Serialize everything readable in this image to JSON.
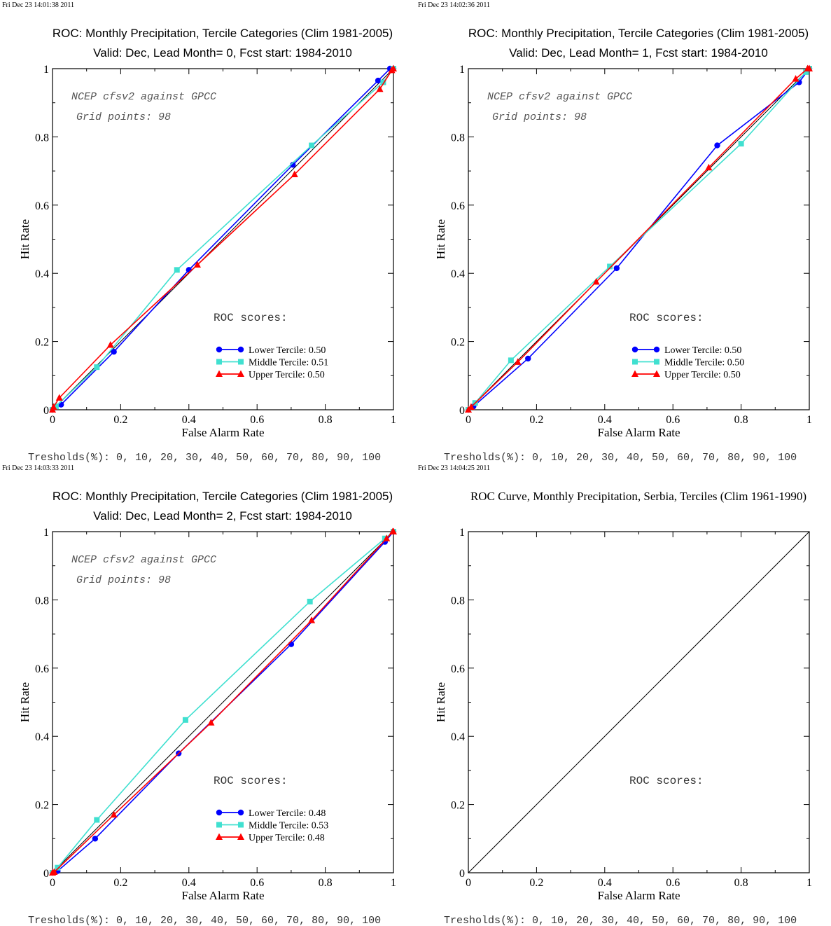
{
  "chart_data": [
    {
      "type": "line",
      "timestamp": "Fri Dec 23 14:01:38 2011",
      "title": "ROC: Monthly Precipitation, Tercile Categories (Clim 1981-2005)",
      "subtitle": "Valid: Dec, Lead Month= 0, Fcst start: 1984-2010",
      "xlabel": "False Alarm Rate",
      "ylabel": "Hit Rate",
      "xlim": [
        0,
        1
      ],
      "ylim": [
        0,
        1
      ],
      "xticks": [
        "0",
        "0.2",
        "0.4",
        "0.6",
        "0.8",
        "1"
      ],
      "yticks": [
        "0",
        "0.2",
        "0.4",
        "0.6",
        "0.8",
        "1"
      ],
      "annotation_1": "NCEP cfsv2 against GPCC",
      "annotation_2": "Grid points:   98",
      "scores_title": "ROC scores:",
      "legend_position": "bottom-right",
      "thresholds": "Tresholds(%): 0, 10, 20, 30, 40, 50, 60, 70, 80, 90, 100",
      "series": [
        {
          "name": "Lower Tercile: 0.50",
          "color": "#0000ff",
          "marker": "circle",
          "points": [
            [
              0,
              0
            ],
            [
              0.025,
              0.015
            ],
            [
              0.18,
              0.17
            ],
            [
              0.4,
              0.41
            ],
            [
              0.705,
              0.718
            ],
            [
              0.955,
              0.965
            ],
            [
              0.99,
              1.0
            ],
            [
              1,
              1
            ]
          ]
        },
        {
          "name": "Middle Tercile: 0.51",
          "color": "#40e0d0",
          "marker": "square",
          "points": [
            [
              0,
              0
            ],
            [
              0.01,
              0.01
            ],
            [
              0.13,
              0.125
            ],
            [
              0.365,
              0.41
            ],
            [
              0.76,
              0.775
            ],
            [
              0.97,
              0.96
            ],
            [
              1,
              1
            ]
          ]
        },
        {
          "name": "Upper Tercile: 0.50",
          "color": "#ff0000",
          "marker": "triangle",
          "points": [
            [
              0,
              0
            ],
            [
              0.003,
              0.008
            ],
            [
              0.02,
              0.035
            ],
            [
              0.17,
              0.19
            ],
            [
              0.425,
              0.425
            ],
            [
              0.71,
              0.69
            ],
            [
              0.96,
              0.94
            ],
            [
              0.995,
              0.995
            ],
            [
              1,
              1
            ]
          ]
        }
      ]
    },
    {
      "type": "line",
      "timestamp": "Fri Dec 23 14:02:36 2011",
      "title": "ROC: Monthly Precipitation, Tercile Categories (Clim 1981-2005)",
      "subtitle": "Valid: Dec, Lead Month= 1, Fcst start: 1984-2010",
      "xlabel": "False Alarm Rate",
      "ylabel": "Hit Rate",
      "xlim": [
        0,
        1
      ],
      "ylim": [
        0,
        1
      ],
      "xticks": [
        "0",
        "0.2",
        "0.4",
        "0.6",
        "0.8",
        "1"
      ],
      "yticks": [
        "0",
        "0.2",
        "0.4",
        "0.6",
        "0.8",
        "1"
      ],
      "annotation_1": "NCEP cfsv2 against GPCC",
      "annotation_2": "Grid points:   98",
      "scores_title": "ROC scores:",
      "legend_position": "bottom-right",
      "thresholds": "Tresholds(%): 0, 10, 20, 30, 40, 50, 60, 70, 80, 90, 100",
      "series": [
        {
          "name": "Lower Tercile: 0.50",
          "color": "#0000ff",
          "marker": "circle",
          "points": [
            [
              0,
              0
            ],
            [
              0.015,
              0.01
            ],
            [
              0.175,
              0.15
            ],
            [
              0.435,
              0.415
            ],
            [
              0.73,
              0.775
            ],
            [
              0.97,
              0.96
            ],
            [
              1,
              1
            ]
          ]
        },
        {
          "name": "Middle Tercile: 0.50",
          "color": "#40e0d0",
          "marker": "square",
          "points": [
            [
              0,
              0
            ],
            [
              0.02,
              0.02
            ],
            [
              0.125,
              0.145
            ],
            [
              0.415,
              0.42
            ],
            [
              0.8,
              0.78
            ],
            [
              0.99,
              0.99
            ],
            [
              1,
              1
            ]
          ]
        },
        {
          "name": "Upper Tercile: 0.50",
          "color": "#ff0000",
          "marker": "triangle",
          "points": [
            [
              0,
              0
            ],
            [
              0.008,
              0.008
            ],
            [
              0.145,
              0.14
            ],
            [
              0.375,
              0.375
            ],
            [
              0.705,
              0.71
            ],
            [
              0.96,
              0.97
            ],
            [
              0.995,
              1.0
            ],
            [
              1,
              1
            ]
          ]
        }
      ]
    },
    {
      "type": "line",
      "timestamp": "Fri Dec 23 14:03:33 2011",
      "title": "ROC: Monthly Precipitation, Tercile Categories (Clim 1981-2005)",
      "subtitle": "Valid: Dec, Lead Month= 2, Fcst start: 1984-2010",
      "xlabel": "False Alarm Rate",
      "ylabel": "Hit Rate",
      "xlim": [
        0,
        1
      ],
      "ylim": [
        0,
        1
      ],
      "xticks": [
        "0",
        "0.2",
        "0.4",
        "0.6",
        "0.8",
        "1"
      ],
      "yticks": [
        "0",
        "0.2",
        "0.4",
        "0.6",
        "0.8",
        "1"
      ],
      "annotation_1": "NCEP cfsv2 against GPCC",
      "annotation_2": "Grid points:   98",
      "scores_title": "ROC scores:",
      "legend_position": "bottom-right",
      "thresholds": "Tresholds(%): 0, 10, 20, 30, 40, 50, 60, 70, 80, 90, 100",
      "series": [
        {
          "name": "Lower Tercile: 0.48",
          "color": "#0000ff",
          "marker": "circle",
          "points": [
            [
              0,
              0
            ],
            [
              0.015,
              0.005
            ],
            [
              0.125,
              0.1
            ],
            [
              0.37,
              0.35
            ],
            [
              0.7,
              0.67
            ],
            [
              0.975,
              0.97
            ],
            [
              1,
              1
            ]
          ]
        },
        {
          "name": "Middle Tercile: 0.53",
          "color": "#40e0d0",
          "marker": "square",
          "points": [
            [
              0,
              0
            ],
            [
              0.015,
              0.015
            ],
            [
              0.13,
              0.155
            ],
            [
              0.39,
              0.448
            ],
            [
              0.755,
              0.795
            ],
            [
              0.975,
              0.98
            ],
            [
              1,
              1
            ]
          ]
        },
        {
          "name": "Upper Tercile: 0.48",
          "color": "#ff0000",
          "marker": "triangle",
          "points": [
            [
              0,
              0
            ],
            [
              0.005,
              0.002
            ],
            [
              0.18,
              0.17
            ],
            [
              0.465,
              0.44
            ],
            [
              0.76,
              0.74
            ],
            [
              0.98,
              0.98
            ],
            [
              0.998,
              1.0
            ],
            [
              1,
              1
            ]
          ]
        }
      ]
    },
    {
      "type": "line",
      "timestamp": "Fri Dec 23 14:04:25 2011",
      "title": "ROC Curve, Monthly Precipitation, Serbia, Terciles (Clim 1961-1990)",
      "subtitle": "",
      "xlabel": "False Alarm Rate",
      "ylabel": "Hit Rate",
      "xlim": [
        0,
        1
      ],
      "ylim": [
        0,
        1
      ],
      "xticks": [
        "0",
        "0.2",
        "0.4",
        "0.6",
        "0.8",
        "1"
      ],
      "yticks": [
        "0",
        "0.2",
        "0.4",
        "0.6",
        "0.8",
        "1"
      ],
      "annotation_1": "",
      "annotation_2": "",
      "scores_title": "ROC scores:",
      "legend_position": "bottom-right",
      "thresholds": "Tresholds(%): 0, 10, 20, 30, 40, 50, 60, 70, 80, 90, 100",
      "series": []
    }
  ]
}
